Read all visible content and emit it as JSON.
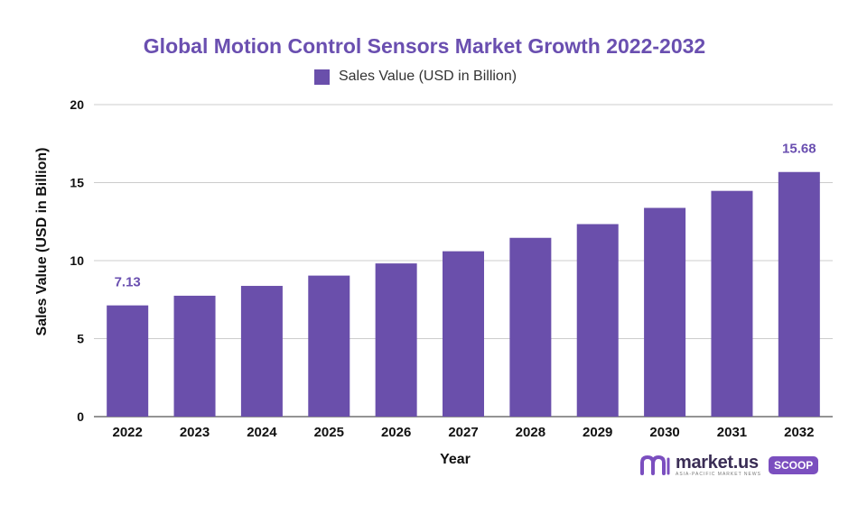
{
  "chart_data": {
    "type": "bar",
    "title": "Global Motion Control Sensors Market Growth 2022-2032",
    "legend": {
      "label": "Sales Value (USD in Billion)",
      "position": "top-center"
    },
    "xlabel": "Year",
    "ylabel": "Sales Value (USD in Billion)",
    "ylim": [
      0,
      20
    ],
    "yticks": [
      0,
      5,
      10,
      15,
      20
    ],
    "grid": true,
    "categories": [
      "2022",
      "2023",
      "2024",
      "2025",
      "2026",
      "2027",
      "2028",
      "2029",
      "2030",
      "2031",
      "2032"
    ],
    "series": [
      {
        "name": "Sales Value (USD in Billion)",
        "values": [
          7.13,
          7.75,
          8.38,
          9.04,
          9.82,
          10.6,
          11.46,
          12.34,
          13.38,
          14.47,
          15.68
        ],
        "color": "#6a4fab"
      }
    ],
    "data_labels": [
      {
        "index": 0,
        "text": "7.13"
      },
      {
        "index": 10,
        "text": "15.68"
      }
    ]
  },
  "branding": {
    "name": "market.us",
    "tagline": "ASIA-PACIFIC MARKET NEWS",
    "badge": "SCOOP",
    "color": "#7b4fbf"
  }
}
